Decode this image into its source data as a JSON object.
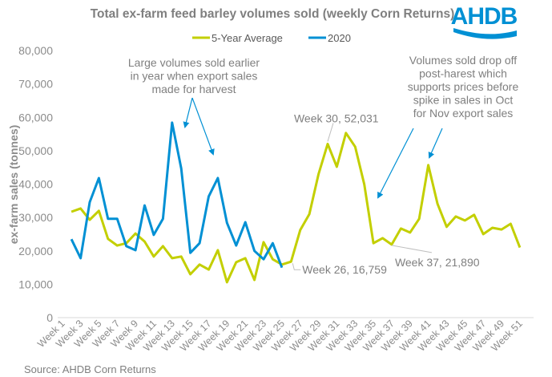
{
  "logo": {
    "text": "AHDB",
    "color": "#0090d4"
  },
  "source": "Source: AHDB Corn Returns",
  "chart_data": {
    "type": "line",
    "title": "Total ex-farm feed barley volumes sold (weekly Corn Returns)",
    "xlabel": "",
    "ylabel": "ex-farm sales (tonnes)",
    "ylim": [
      0,
      80000
    ],
    "yticks": [
      0,
      10000,
      20000,
      30000,
      40000,
      50000,
      60000,
      70000,
      80000
    ],
    "ytick_labels": [
      "0",
      "10,000",
      "20,000",
      "30,000",
      "40,000",
      "50,000",
      "60,000",
      "70,000",
      "80,000"
    ],
    "grid": false,
    "legend_position": "top-center",
    "categories": [
      "Week 1",
      "Week 2",
      "Week 3",
      "Week 4",
      "Week 5",
      "Week 6",
      "Week 7",
      "Week 8",
      "Week 9",
      "Week 10",
      "Week 11",
      "Week 12",
      "Week 13",
      "Week 14",
      "Week 15",
      "Week 16",
      "Week 17",
      "Week 18",
      "Week 19",
      "Week 20",
      "Week 21",
      "Week 22",
      "Week 23",
      "Week 24",
      "Week 25",
      "Week 26",
      "Week 27",
      "Week 28",
      "Week 29",
      "Week 30",
      "Week 31",
      "Week 32",
      "Week 33",
      "Week 34",
      "Week 35",
      "Week 36",
      "Week 37",
      "Week 38",
      "Week 39",
      "Week 40",
      "Week 41",
      "Week 42",
      "Week 43",
      "Week 44",
      "Week 45",
      "Week 46",
      "Week 47",
      "Week 48",
      "Week 49",
      "Week 50",
      "Week 51",
      "Week 52"
    ],
    "xtick_labels": [
      "Week 1",
      "Week 3",
      "Week 5",
      "Week 7",
      "Week 9",
      "Week 11",
      "Week 13",
      "Week 15",
      "Week 17",
      "Week 19",
      "Week 21",
      "Week 23",
      "Week 25",
      "Week 27",
      "Week 29",
      "Week 31",
      "Week 33",
      "Week 35",
      "Week 37",
      "Week 39",
      "Week 41",
      "Week 43",
      "Week 45",
      "Week 47",
      "Week 49",
      "Week 51"
    ],
    "series": [
      {
        "name": "5-Year Average",
        "color": "#c3cf00",
        "values": [
          null,
          31700,
          32700,
          29300,
          32000,
          23600,
          21600,
          22300,
          25200,
          22800,
          18300,
          21400,
          17800,
          18300,
          13000,
          15900,
          14400,
          20200,
          10600,
          16600,
          17800,
          11300,
          22600,
          17500,
          15900,
          16759,
          26200,
          31000,
          43000,
          52031,
          45200,
          55300,
          51200,
          39900,
          22300,
          23800,
          21890,
          26700,
          25500,
          29600,
          45700,
          34100,
          27200,
          30300,
          29100,
          30800,
          25000,
          26900,
          26400,
          28100,
          21000,
          null
        ]
      },
      {
        "name": "2020",
        "color": "#0090d4",
        "values": [
          null,
          23500,
          17800,
          34600,
          41800,
          29600,
          29600,
          21400,
          20200,
          33600,
          24800,
          29600,
          58400,
          44700,
          19400,
          22300,
          36300,
          41800,
          28400,
          21600,
          28600,
          20000,
          17500,
          22300,
          15000,
          null,
          null,
          null,
          null,
          null,
          null,
          null,
          null,
          null,
          null,
          null,
          null,
          null,
          null,
          null,
          null,
          null,
          null,
          null,
          null,
          null,
          null,
          null,
          null,
          null,
          null,
          null
        ]
      }
    ],
    "data_labels": [
      {
        "series": "5-Year Average",
        "category": "Week 26",
        "text": "Week 26, 16,759"
      },
      {
        "series": "5-Year Average",
        "category": "Week 30",
        "text": "Week 30, 52,031"
      },
      {
        "series": "5-Year Average",
        "category": "Week 37",
        "text": "Week 37, 21,890"
      }
    ],
    "annotations": [
      {
        "lines": [
          "Large volumes sold earlier",
          "in year when export sales",
          "made for harvest"
        ],
        "arrows_to": [
          "Week 13",
          "Week 18"
        ]
      },
      {
        "lines": [
          "Volumes sold drop off",
          "post-harest which",
          "supports prices  before",
          "spike in sales in Oct",
          "for Nov export sales"
        ],
        "arrows_to": [
          "Week 35",
          "Week 41"
        ]
      }
    ]
  }
}
